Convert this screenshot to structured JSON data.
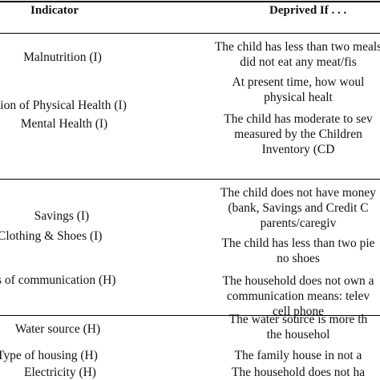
{
  "header": {
    "indicator": "Indicator",
    "deprived_if": "Deprived If . . ."
  },
  "groups": [
    {
      "rows": [
        {
          "indicator": "Malnutrition (I)",
          "deprived": [
            "The child has less than two meals",
            "did not eat any meat/fis"
          ]
        },
        {
          "indicator": "tion of Physical Health (I)",
          "deprived": [
            "At present time, how woul",
            "physical healt"
          ]
        },
        {
          "indicator": "Mental Health (I)",
          "deprived": [
            "The child has moderate to sev",
            "measured by the Children",
            "Inventory (CD"
          ]
        }
      ]
    },
    {
      "rows": [
        {
          "indicator": "Savings (I)",
          "deprived": [
            "The child does not have money",
            "(bank, Savings and Credit C",
            "parents/caregiv"
          ]
        },
        {
          "indicator": "Clothing & Shoes (I)",
          "deprived": [
            "The child has less than two pie",
            "no shoes"
          ]
        },
        {
          "indicator": "s of communication (H)",
          "deprived": [
            "The household does not own a",
            "communication means: telev",
            "cell phone"
          ]
        }
      ]
    },
    {
      "rows": [
        {
          "indicator": "Water source (H)",
          "deprived": [
            "The water source is more th",
            "the househol"
          ]
        },
        {
          "indicator": "Type of housing (H)",
          "deprived": [
            "The family house in not a"
          ]
        },
        {
          "indicator": "Electricity (H)",
          "deprived": [
            "The household does not ha"
          ]
        }
      ]
    }
  ]
}
